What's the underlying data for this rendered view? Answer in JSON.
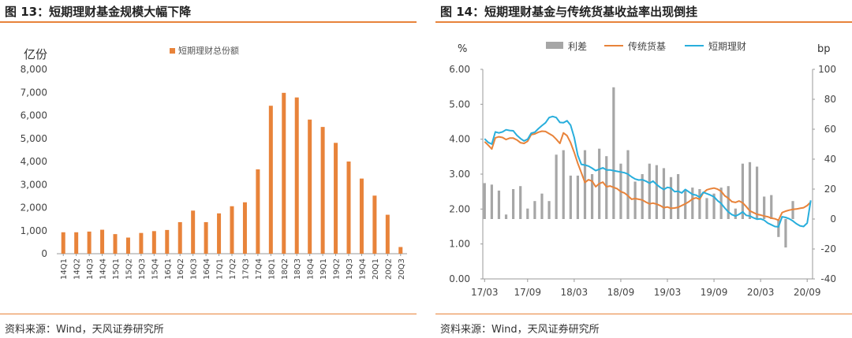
{
  "left": {
    "title": "图 13：短期理财基金规模大幅下降",
    "source": "资料来源：Wind，天风证券研究所"
  },
  "right": {
    "title": "图 14：短期理财基金与传统货基收益率出现倒挂",
    "source": "资料来源：Wind，天风证券研究所"
  },
  "chart_data": [
    {
      "type": "bar",
      "title": "",
      "ylabel": "亿份",
      "ylim": [
        0,
        8000
      ],
      "yticks": [
        "0",
        "1,000",
        "2,000",
        "3,000",
        "4,000",
        "5,000",
        "6,000",
        "7,000",
        "8,000"
      ],
      "ytick_values": [
        0,
        1000,
        2000,
        3000,
        4000,
        5000,
        6000,
        7000,
        8000
      ],
      "grid": false,
      "legend": "top",
      "colors": {
        "bar": "#E8833A"
      },
      "categories": [
        "14Q1",
        "14Q2",
        "14Q3",
        "14Q4",
        "15Q1",
        "15Q2",
        "15Q3",
        "15Q4",
        "16Q1",
        "16Q2",
        "16Q3",
        "16Q4",
        "17Q1",
        "17Q2",
        "17Q3",
        "17Q4",
        "18Q1",
        "18Q2",
        "18Q3",
        "18Q4",
        "19Q1",
        "19Q2",
        "19Q3",
        "19Q4",
        "20Q1",
        "20Q2",
        "20Q3"
      ],
      "series": [
        {
          "name": "短期理财总份额",
          "values": [
            930,
            930,
            960,
            1040,
            850,
            700,
            900,
            980,
            1030,
            1370,
            1870,
            1370,
            1750,
            2060,
            2230,
            3660,
            6420,
            6980,
            6780,
            5820,
            5500,
            4810,
            4000,
            3260,
            2520,
            1690,
            290
          ]
        }
      ]
    },
    {
      "type": "line",
      "title": "",
      "ylabel": "%",
      "y2label": "bp",
      "ylim": [
        0,
        6
      ],
      "y2lim": [
        -40,
        100
      ],
      "yticks": [
        "0.00",
        "1.00",
        "2.00",
        "3.00",
        "4.00",
        "5.00",
        "6.00"
      ],
      "ytick_values": [
        0,
        1,
        2,
        3,
        4,
        5,
        6
      ],
      "y2ticks": [
        "-40",
        "-20",
        "0",
        "20",
        "40",
        "60",
        "80",
        "100"
      ],
      "y2tick_values": [
        -40,
        -20,
        0,
        20,
        40,
        60,
        80,
        100
      ],
      "grid": false,
      "legend": "top",
      "x_ticks": [
        "17/03",
        "17/09",
        "18/03",
        "18/09",
        "19/03",
        "19/09",
        "20/03",
        "20/09"
      ],
      "x_tick_positions": [
        0,
        12,
        25,
        38,
        51,
        64,
        77,
        90
      ],
      "n_points": 92,
      "colors": {
        "spread": "#A6A6A6",
        "money_fund": "#E8833A",
        "short_term": "#28AEDC"
      },
      "series": [
        {
          "name": "利差",
          "kind": "bar",
          "axis": "y2",
          "values": [
            24,
            0,
            23,
            0,
            19,
            0,
            3,
            0,
            20,
            0,
            22,
            0,
            7,
            0,
            12,
            0,
            17,
            0,
            12,
            0,
            43,
            0,
            46,
            0,
            29,
            0,
            29,
            0,
            46,
            0,
            30,
            0,
            47,
            0,
            42,
            0,
            88,
            0,
            37,
            0,
            46,
            0,
            25,
            0,
            30,
            0,
            37,
            0,
            36,
            0,
            34,
            0,
            28,
            0,
            30,
            0,
            19,
            0,
            21,
            0,
            20,
            0,
            14,
            0,
            17,
            0,
            21,
            0,
            22,
            0,
            7,
            0,
            37,
            0,
            38,
            0,
            35,
            0,
            15,
            0,
            16,
            0,
            -12,
            0,
            -19,
            0,
            12,
            0
          ]
        },
        {
          "name": "传统货基",
          "kind": "line",
          "axis": "y",
          "values": [
            3.93,
            3.83,
            3.72,
            4.04,
            4.07,
            4.05,
            3.99,
            4.03,
            4.03,
            3.98,
            3.9,
            3.88,
            3.94,
            4.13,
            4.15,
            4.2,
            4.23,
            4.22,
            4.16,
            4.1,
            4.0,
            3.88,
            4.18,
            4.1,
            3.9,
            3.62,
            3.31,
            3.04,
            2.76,
            2.84,
            2.8,
            2.64,
            2.73,
            2.77,
            2.64,
            2.66,
            2.62,
            2.58,
            2.5,
            2.46,
            2.38,
            2.28,
            2.3,
            2.28,
            2.26,
            2.2,
            2.15,
            2.17,
            2.14,
            2.1,
            2.04,
            2.06,
            2.02,
            2.03,
            2.05,
            2.1,
            2.15,
            2.21,
            2.29,
            2.32,
            2.28,
            2.46,
            2.55,
            2.58,
            2.6,
            2.57,
            2.51,
            2.38,
            2.31,
            2.21,
            2.19,
            2.23,
            2.18,
            2.07,
            1.95,
            1.9,
            1.85,
            1.83,
            1.8,
            1.78,
            1.74,
            1.72,
            1.68,
            1.9,
            1.94,
            1.97,
            1.99,
            2.0,
            2.02,
            2.04,
            2.1,
            2.2
          ]
        },
        {
          "name": "短期理财",
          "kind": "line",
          "axis": "y",
          "values": [
            4.01,
            3.91,
            3.86,
            4.21,
            4.18,
            4.21,
            4.27,
            4.25,
            4.24,
            4.11,
            4.02,
            3.95,
            4.0,
            4.17,
            4.2,
            4.3,
            4.39,
            4.47,
            4.62,
            4.65,
            4.62,
            4.48,
            4.47,
            4.53,
            4.4,
            4.05,
            3.54,
            3.28,
            3.26,
            3.23,
            3.17,
            3.1,
            3.14,
            3.18,
            3.12,
            3.12,
            3.1,
            3.08,
            3.06,
            3.04,
            3.0,
            2.92,
            2.86,
            2.83,
            2.84,
            2.8,
            2.74,
            2.8,
            2.7,
            2.62,
            2.56,
            2.62,
            2.6,
            2.5,
            2.51,
            2.46,
            2.56,
            2.49,
            2.42,
            2.4,
            2.34,
            2.48,
            2.44,
            2.4,
            2.35,
            2.24,
            2.16,
            2.03,
            1.92,
            1.84,
            1.8,
            1.85,
            1.92,
            1.82,
            1.8,
            1.75,
            1.71,
            1.72,
            1.68,
            1.6,
            1.55,
            1.5,
            1.49,
            1.78,
            1.76,
            1.72,
            1.66,
            1.58,
            1.52,
            1.5,
            1.6,
            2.25
          ]
        }
      ]
    }
  ]
}
